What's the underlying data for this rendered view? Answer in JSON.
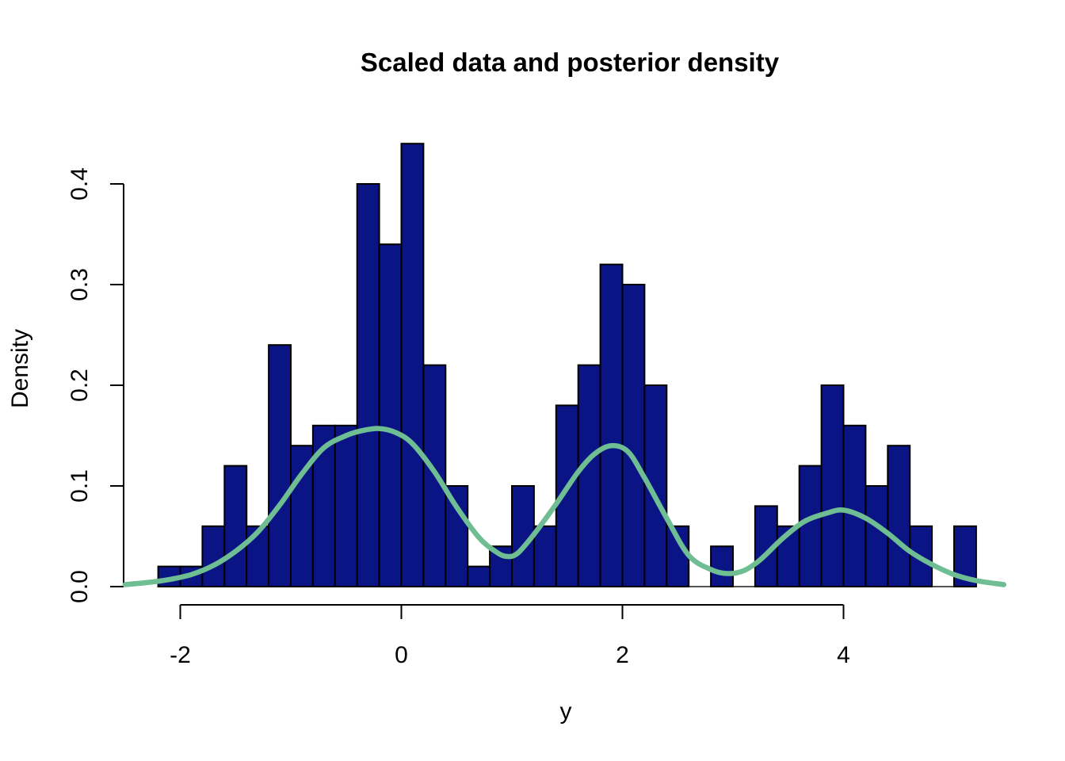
{
  "chart_data": {
    "type": "bar",
    "subtype": "histogram_with_density_curve",
    "title": "Scaled data and posterior density",
    "xlabel": "y",
    "ylabel": "Density",
    "x_tick_labels": [
      "-2",
      "0",
      "2",
      "4"
    ],
    "x_tick_values": [
      -2,
      0,
      2,
      4
    ],
    "y_tick_labels": [
      "0.0",
      "0.1",
      "0.2",
      "0.3",
      "0.4"
    ],
    "y_tick_values": [
      0,
      0.1,
      0.2,
      0.3,
      0.4
    ],
    "xlim": [
      -2.5,
      5.5
    ],
    "ylim": [
      0,
      0.44
    ],
    "grid": "off",
    "legend": "none",
    "bin_width": 0.2,
    "bins": {
      "start": [
        -2.2,
        -2.0,
        -1.8,
        -1.6,
        -1.4,
        -1.2,
        -1.0,
        -0.8,
        -0.6,
        -0.4,
        -0.2,
        0.0,
        0.2,
        0.4,
        0.6,
        0.8,
        1.0,
        1.2,
        1.4,
        1.6,
        1.8,
        2.0,
        2.2,
        2.4,
        2.6,
        2.8,
        3.0,
        3.2,
        3.4,
        3.6,
        3.8,
        4.0,
        4.2,
        4.4,
        4.6,
        4.8,
        5.0
      ],
      "density": [
        0.02,
        0.02,
        0.06,
        0.12,
        0.06,
        0.24,
        0.14,
        0.16,
        0.16,
        0.4,
        0.34,
        0.44,
        0.22,
        0.1,
        0.02,
        0.04,
        0.1,
        0.06,
        0.18,
        0.22,
        0.32,
        0.3,
        0.2,
        0.06,
        0.0,
        0.04,
        0.0,
        0.08,
        0.06,
        0.12,
        0.2,
        0.16,
        0.1,
        0.14,
        0.06,
        0.0,
        0.06
      ]
    },
    "curve": {
      "name": "posterior density",
      "x": [
        -2.5,
        -2.3,
        -2.1,
        -1.9,
        -1.7,
        -1.5,
        -1.3,
        -1.1,
        -0.9,
        -0.7,
        -0.5,
        -0.35,
        -0.2,
        -0.05,
        0.1,
        0.3,
        0.5,
        0.7,
        0.85,
        0.95,
        1.05,
        1.2,
        1.4,
        1.6,
        1.75,
        1.9,
        2.05,
        2.2,
        2.4,
        2.6,
        2.8,
        2.95,
        3.1,
        3.25,
        3.45,
        3.65,
        3.85,
        4.0,
        4.2,
        4.4,
        4.6,
        4.8,
        5.0,
        5.2,
        5.45
      ],
      "y": [
        0.002,
        0.004,
        0.007,
        0.012,
        0.021,
        0.035,
        0.054,
        0.081,
        0.112,
        0.138,
        0.15,
        0.155,
        0.157,
        0.153,
        0.142,
        0.114,
        0.079,
        0.049,
        0.035,
        0.03,
        0.033,
        0.052,
        0.082,
        0.114,
        0.132,
        0.14,
        0.134,
        0.108,
        0.068,
        0.031,
        0.017,
        0.013,
        0.016,
        0.027,
        0.048,
        0.065,
        0.073,
        0.076,
        0.068,
        0.053,
        0.035,
        0.022,
        0.012,
        0.006,
        0.002
      ]
    },
    "colors": {
      "bar_fill": "#0B1484",
      "bar_border": "#000000",
      "curve": "#6EBD93",
      "axis": "#000000",
      "background": "#FFFFFF"
    }
  }
}
